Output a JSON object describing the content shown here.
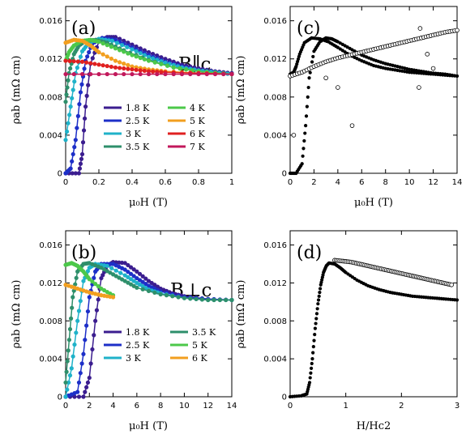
{
  "chart_data": [
    {
      "panel": "(a)",
      "annotation": "B∥c",
      "type": "scatter",
      "xlabel": "μ₀H (T)",
      "ylabel": "ρab (mΩ cm)",
      "xlim": [
        0,
        1
      ],
      "ylim": [
        0,
        0.0175
      ],
      "xticks": [
        0,
        0.2,
        0.4,
        0.6,
        0.8,
        1
      ],
      "xtick_labels": [
        "0",
        "0.2",
        "0.4",
        "0.6",
        "0.8",
        "1"
      ],
      "yticks": [
        0,
        0.004,
        0.008,
        0.012,
        0.016
      ],
      "ytick_labels": [
        "0",
        "0.004",
        "0.008",
        "0.012",
        "0.016"
      ],
      "legend_position": "bottom-right",
      "legend_columns": 2,
      "series": [
        {
          "name": "1.8 K",
          "color": "#3b1d8f",
          "x": [
            0,
            0.08,
            0.1,
            0.12,
            0.15,
            0.2,
            0.25,
            0.3,
            0.4,
            0.5,
            0.6,
            0.7,
            0.8,
            0.9,
            1.0
          ],
          "y": [
            0,
            0,
            0.002,
            0.007,
            0.0115,
            0.0138,
            0.0143,
            0.0143,
            0.0135,
            0.0127,
            0.012,
            0.0114,
            0.011,
            0.0107,
            0.0105
          ]
        },
        {
          "name": "2.5 K",
          "color": "#1d2fc8",
          "x": [
            0,
            0.03,
            0.06,
            0.09,
            0.12,
            0.16,
            0.22,
            0.3,
            0.4,
            0.5,
            0.6,
            0.7,
            0.8,
            0.9,
            1.0
          ],
          "y": [
            0,
            0.0005,
            0.0035,
            0.0085,
            0.0118,
            0.0136,
            0.0142,
            0.014,
            0.0132,
            0.0124,
            0.0117,
            0.0112,
            0.0108,
            0.0106,
            0.0104
          ]
        },
        {
          "name": "3 K",
          "color": "#1fb2c9",
          "x": [
            0,
            0.03,
            0.06,
            0.1,
            0.14,
            0.2,
            0.28,
            0.4,
            0.5,
            0.6,
            0.7,
            0.8,
            0.9,
            1.0
          ],
          "y": [
            0.0035,
            0.007,
            0.0105,
            0.0128,
            0.0137,
            0.0141,
            0.0139,
            0.013,
            0.0122,
            0.0116,
            0.0111,
            0.0108,
            0.0106,
            0.0104
          ]
        },
        {
          "name": "3.5 K",
          "color": "#2e8f6b",
          "x": [
            0,
            0.02,
            0.05,
            0.08,
            0.12,
            0.18,
            0.25,
            0.35,
            0.5,
            0.65,
            0.8,
            1.0
          ],
          "y": [
            0.0075,
            0.0105,
            0.0125,
            0.0134,
            0.0139,
            0.014,
            0.0137,
            0.0129,
            0.0119,
            0.0111,
            0.0107,
            0.0104
          ]
        },
        {
          "name": "4 K",
          "color": "#4cc84a",
          "x": [
            0,
            0.02,
            0.05,
            0.1,
            0.15,
            0.2,
            0.3,
            0.4,
            0.5,
            0.65,
            0.8,
            1.0
          ],
          "y": [
            0.0118,
            0.0127,
            0.0134,
            0.0139,
            0.014,
            0.0138,
            0.0131,
            0.0124,
            0.0118,
            0.0111,
            0.0107,
            0.0104
          ]
        },
        {
          "name": "5 K",
          "color": "#f29f1f",
          "x": [
            0,
            0.05,
            0.1,
            0.15,
            0.2,
            0.3,
            0.4,
            0.5,
            0.6,
            0.8,
            1.0
          ],
          "y": [
            0.0137,
            0.014,
            0.0139,
            0.0134,
            0.0127,
            0.0118,
            0.0112,
            0.0109,
            0.0107,
            0.0105,
            0.0104
          ]
        },
        {
          "name": "6 K",
          "color": "#e02020",
          "x": [
            0,
            0.1,
            0.2,
            0.3,
            0.4,
            0.5,
            0.6,
            0.8,
            1.0
          ],
          "y": [
            0.0118,
            0.0117,
            0.0114,
            0.0111,
            0.0109,
            0.0107,
            0.0106,
            0.0105,
            0.0104
          ]
        },
        {
          "name": "7 K",
          "color": "#c2185b",
          "x": [
            0,
            0.2,
            0.4,
            0.6,
            0.8,
            1.0
          ],
          "y": [
            0.0104,
            0.0104,
            0.0104,
            0.0104,
            0.0104,
            0.0104
          ]
        }
      ]
    },
    {
      "panel": "(c)",
      "type": "scatter",
      "xlabel": "μ₀H (T)",
      "ylabel": "ρab (mΩ cm)",
      "xlim": [
        0,
        14
      ],
      "ylim": [
        0,
        0.0175
      ],
      "xticks": [
        0,
        2,
        4,
        6,
        8,
        10,
        12,
        14
      ],
      "xtick_labels": [
        "0",
        "2",
        "4",
        "6",
        "8",
        "10",
        "12",
        "14"
      ],
      "yticks": [
        0,
        0.004,
        0.008,
        0.012,
        0.016
      ],
      "ytick_labels": [
        "0",
        "0.004",
        "0.008",
        "0.012",
        "0.016"
      ],
      "series": [
        {
          "marker": "filled",
          "color": "#000000",
          "x": [
            0,
            0.3,
            0.5,
            0.8,
            1.2,
            1.8,
            2.5,
            3.2,
            4,
            5,
            6,
            7,
            8,
            9,
            10,
            11,
            12,
            13,
            14
          ],
          "y": [
            0.0104,
            0.0106,
            0.0112,
            0.0125,
            0.0137,
            0.0142,
            0.0141,
            0.0138,
            0.0132,
            0.0124,
            0.0118,
            0.0113,
            0.011,
            0.0108,
            0.0106,
            0.0105,
            0.0104,
            0.0103,
            0.0102
          ]
        },
        {
          "marker": "filled",
          "color": "#000000",
          "x": [
            0,
            0.5,
            1.0,
            1.3,
            1.6,
            2.0,
            2.5,
            3,
            3.5,
            4,
            5,
            6,
            7,
            8,
            9,
            10,
            11,
            12,
            13,
            14
          ],
          "y": [
            0,
            0,
            0.001,
            0.005,
            0.01,
            0.0128,
            0.0138,
            0.0142,
            0.0141,
            0.0138,
            0.0131,
            0.0124,
            0.0119,
            0.0115,
            0.0112,
            0.0109,
            0.0107,
            0.0105,
            0.0104,
            0.0102
          ]
        },
        {
          "marker": "open",
          "color": "#000000",
          "x": [
            0,
            1,
            2,
            3,
            4,
            5,
            6,
            7,
            8,
            9,
            10,
            11,
            12,
            13,
            14
          ],
          "y": [
            0.0102,
            0.0106,
            0.0112,
            0.0117,
            0.0121,
            0.0124,
            0.0127,
            0.013,
            0.0133,
            0.0136,
            0.0139,
            0.0142,
            0.0145,
            0.0148,
            0.015
          ]
        },
        {
          "marker": "open-scatter",
          "color": "#000000",
          "x": [
            0.3,
            3.0,
            4.0,
            5.2,
            10.9,
            12.0,
            10.8,
            11.5
          ],
          "y": [
            0.004,
            0.01,
            0.009,
            0.005,
            0.0152,
            0.011,
            0.009,
            0.0125
          ]
        }
      ]
    },
    {
      "panel": "(b)",
      "annotation": "B⊥c",
      "type": "scatter",
      "xlabel": "μ₀H (T)",
      "ylabel": "ρab (mΩ cm)",
      "xlim": [
        0,
        14
      ],
      "ylim": [
        0,
        0.0175
      ],
      "xticks": [
        0,
        2,
        4,
        6,
        8,
        10,
        12,
        14
      ],
      "xtick_labels": [
        "0",
        "2",
        "4",
        "6",
        "8",
        "10",
        "12",
        "14"
      ],
      "yticks": [
        0,
        0.004,
        0.008,
        0.012,
        0.016
      ],
      "ytick_labels": [
        "0",
        "0.004",
        "0.008",
        "0.012",
        "0.016"
      ],
      "legend_position": "bottom-center",
      "legend_columns": 2,
      "series": [
        {
          "name": "1.8 K",
          "color": "#3b1d8f",
          "x": [
            0,
            1.5,
            2.0,
            2.5,
            3.0,
            3.5,
            4.0,
            5,
            6,
            7,
            8,
            9,
            10,
            12,
            14
          ],
          "y": [
            0,
            0,
            0.002,
            0.008,
            0.0125,
            0.0138,
            0.0142,
            0.0141,
            0.0132,
            0.0122,
            0.0114,
            0.0109,
            0.0106,
            0.0103,
            0.0102
          ]
        },
        {
          "name": "2.5 K",
          "color": "#1d2fc8",
          "x": [
            0,
            1.0,
            1.5,
            2.0,
            2.5,
            3.0,
            4,
            5,
            6,
            7,
            8,
            10,
            12,
            14
          ],
          "y": [
            0,
            0.0005,
            0.0045,
            0.0105,
            0.0132,
            0.014,
            0.014,
            0.0134,
            0.0125,
            0.0117,
            0.0111,
            0.0105,
            0.0103,
            0.0102
          ]
        },
        {
          "name": "3 K",
          "color": "#1fb2c9",
          "x": [
            0,
            0.5,
            1.0,
            1.5,
            2.0,
            2.5,
            3.5,
            5,
            6,
            7,
            8,
            10,
            12,
            14
          ],
          "y": [
            0,
            0.003,
            0.008,
            0.0122,
            0.0136,
            0.014,
            0.0138,
            0.0128,
            0.012,
            0.0113,
            0.0109,
            0.0104,
            0.0102,
            0.0102
          ]
        },
        {
          "name": "3.5 K",
          "color": "#2e8f6b",
          "x": [
            0,
            0.3,
            0.6,
            1.0,
            1.5,
            2.0,
            3,
            4,
            5,
            6,
            8,
            10,
            12,
            14
          ],
          "y": [
            0.0015,
            0.006,
            0.0105,
            0.0132,
            0.014,
            0.0141,
            0.0136,
            0.0129,
            0.0122,
            0.0115,
            0.0108,
            0.0104,
            0.0102,
            0.0102
          ]
        },
        {
          "name": "5 K",
          "color": "#4cc84a",
          "x": [
            0,
            0.5,
            1.0,
            1.5,
            2.0,
            3,
            4
          ],
          "y": [
            0.0139,
            0.0141,
            0.0138,
            0.0132,
            0.0124,
            0.0114,
            0.0107
          ]
        },
        {
          "name": "6 K",
          "color": "#f29f1f",
          "x": [
            0,
            1,
            2,
            3,
            4
          ],
          "y": [
            0.0118,
            0.0114,
            0.011,
            0.0107,
            0.0105
          ]
        }
      ]
    },
    {
      "panel": "(d)",
      "type": "scatter",
      "xlabel": "H/Hc2",
      "ylabel": "ρab (mΩ cm)",
      "xlim": [
        0,
        3
      ],
      "ylim": [
        0,
        0.0175
      ],
      "xticks": [
        0,
        1,
        2,
        3
      ],
      "xtick_labels": [
        "0",
        "1",
        "2",
        "3"
      ],
      "yticks": [
        0,
        0.004,
        0.008,
        0.012,
        0.016
      ],
      "ytick_labels": [
        "0",
        "0.004",
        "0.008",
        "0.012",
        "0.016"
      ],
      "series": [
        {
          "marker": "filled",
          "color": "#000000",
          "x": [
            0,
            0.2,
            0.3,
            0.35,
            0.4,
            0.45,
            0.5,
            0.55,
            0.6,
            0.65,
            0.7,
            0.8,
            0.9,
            1.0,
            1.2,
            1.4,
            1.6,
            1.8,
            2.0,
            2.2,
            2.4,
            2.6,
            2.8,
            3.0
          ],
          "y": [
            0,
            0.0001,
            0.0003,
            0.0015,
            0.004,
            0.0072,
            0.0098,
            0.0118,
            0.0131,
            0.0138,
            0.0141,
            0.014,
            0.0136,
            0.0131,
            0.0123,
            0.0117,
            0.0113,
            0.011,
            0.0108,
            0.0106,
            0.0105,
            0.0104,
            0.0103,
            0.0102
          ]
        },
        {
          "marker": "open",
          "color": "#000000",
          "x": [
            0.8,
            0.95,
            1.1,
            1.25,
            1.4,
            1.55,
            1.7,
            1.85,
            2.0,
            2.15,
            2.3,
            2.45,
            2.6,
            2.75,
            2.9
          ],
          "y": [
            0.0144,
            0.0143,
            0.0142,
            0.014,
            0.0138,
            0.0136,
            0.0134,
            0.0132,
            0.013,
            0.0128,
            0.0126,
            0.0124,
            0.0122,
            0.012,
            0.0118
          ]
        }
      ]
    }
  ]
}
